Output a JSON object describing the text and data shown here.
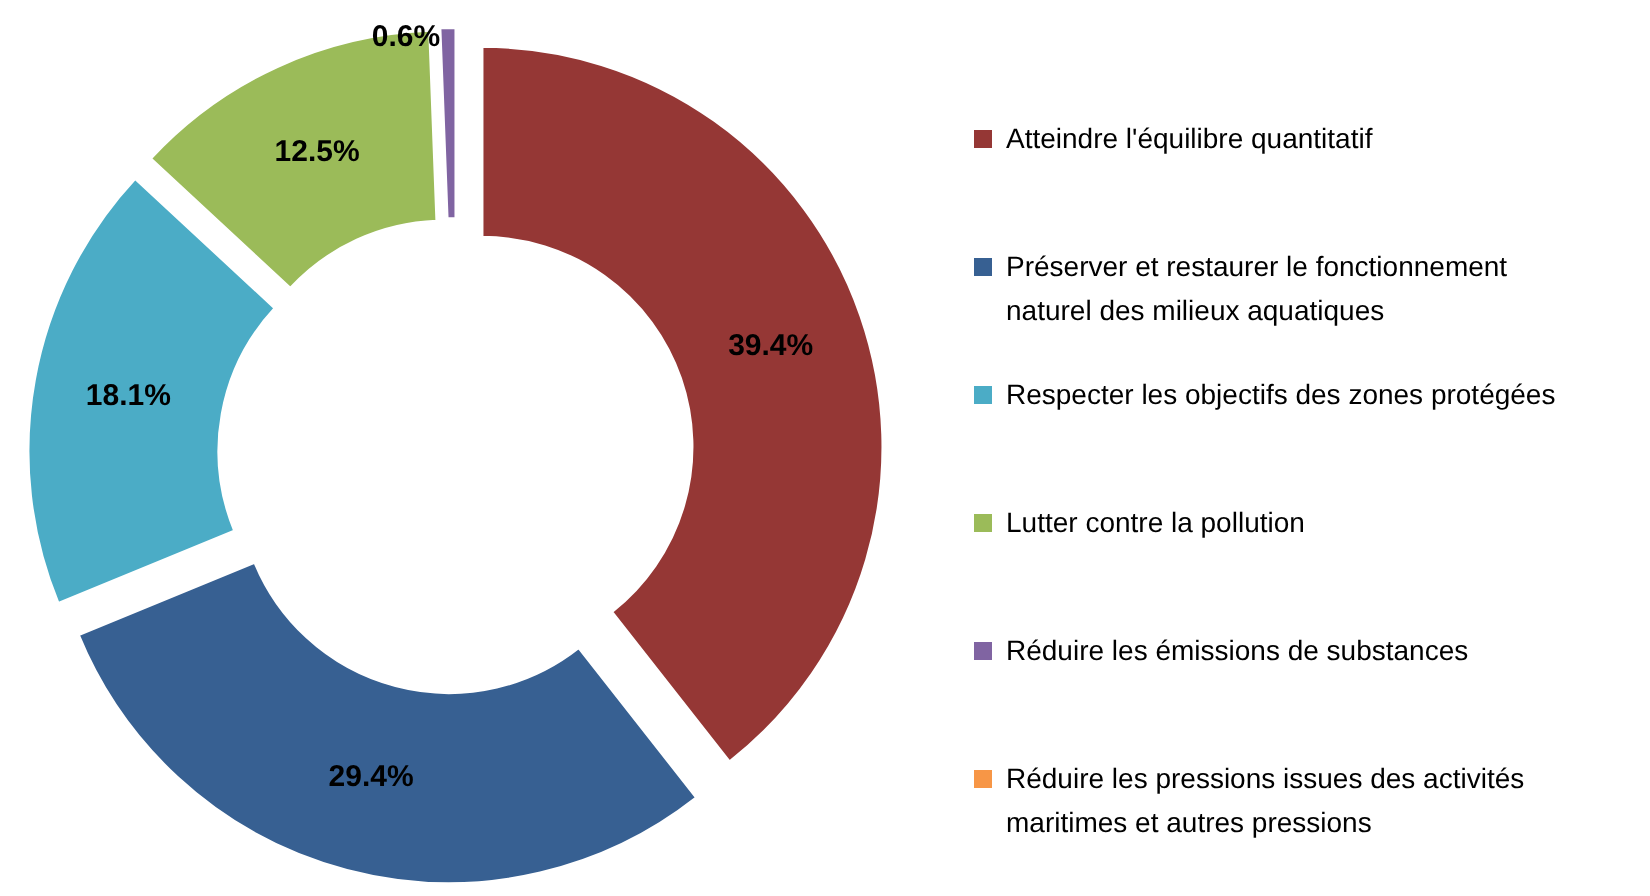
{
  "chart_data": {
    "type": "donut",
    "categories": [
      "Atteindre l'équilibre quantitatif",
      "Préserver et restaurer le fonctionnement naturel des milieux aquatiques",
      "Respecter les objectifs des zones protégées",
      "Lutter contre la pollution",
      "Réduire les émissions de substances",
      "Réduire les pressions issues des activités maritimes et autres pressions"
    ],
    "values": [
      39.4,
      29.4,
      18.1,
      12.5,
      0.6,
      0
    ],
    "colors": [
      "#953735",
      "#376092",
      "#4bacc6",
      "#9bbb59",
      "#8064a2",
      "#f79646"
    ],
    "value_labels": [
      "39.4%",
      "29.4%",
      "18.1%",
      "12.5%",
      "0.6%",
      null
    ],
    "legend": "right"
  }
}
